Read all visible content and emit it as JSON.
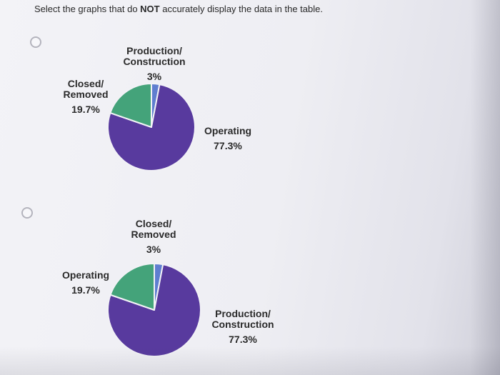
{
  "question": {
    "prefix": "Select the graphs that do ",
    "emphasis": "NOT",
    "suffix": " accurately display the data in the table."
  },
  "colors": {
    "purple": "#583a9e",
    "green": "#44a37a",
    "blue": "#5f7ed0"
  },
  "options": [
    {
      "slices": [
        {
          "name_line1": "Operating",
          "name_line2": "",
          "percent": "77.3%",
          "value": 77.3,
          "color": "#583a9e"
        },
        {
          "name_line1": "Closed/",
          "name_line2": "Removed",
          "percent": "19.7%",
          "value": 19.7,
          "color": "#44a37a"
        },
        {
          "name_line1": "Production/",
          "name_line2": "Construction",
          "percent": "3%",
          "value": 3,
          "color": "#5f7ed0"
        }
      ]
    },
    {
      "slices": [
        {
          "name_line1": "Production/",
          "name_line2": "Construction",
          "percent": "77.3%",
          "value": 77.3,
          "color": "#583a9e"
        },
        {
          "name_line1": "Operating",
          "name_line2": "",
          "percent": "19.7%",
          "value": 19.7,
          "color": "#44a37a"
        },
        {
          "name_line1": "Closed/",
          "name_line2": "Removed",
          "percent": "3%",
          "value": 3,
          "color": "#5f7ed0"
        }
      ]
    }
  ]
}
